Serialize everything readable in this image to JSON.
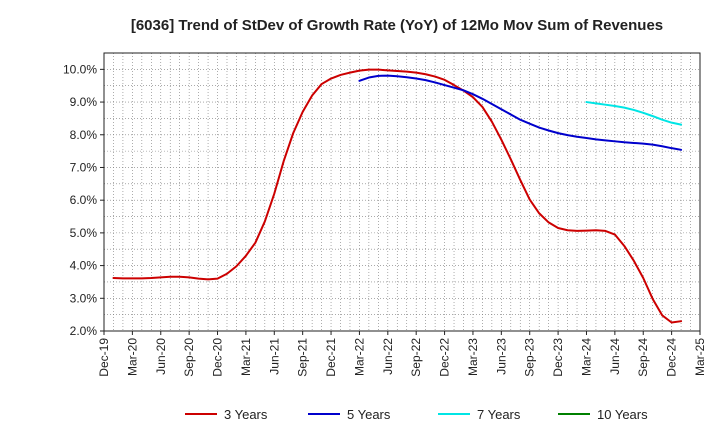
{
  "chart_data": {
    "type": "line",
    "title": "[6036]  Trend of StDev of Growth Rate (YoY) of 12Mo Mov Sum of Revenues",
    "xlabel": "",
    "ylabel": "",
    "ylim": [
      2.0,
      10.5
    ],
    "grid": true,
    "legend_position": "bottom",
    "x_ticks": [
      "Dec-19",
      "Mar-20",
      "Jun-20",
      "Sep-20",
      "Dec-20",
      "Mar-21",
      "Jun-21",
      "Sep-21",
      "Dec-21",
      "Mar-22",
      "Jun-22",
      "Sep-22",
      "Dec-22",
      "Mar-23",
      "Jun-23",
      "Sep-23",
      "Dec-23",
      "Mar-24",
      "Jun-24",
      "Sep-24",
      "Dec-24",
      "Mar-25"
    ],
    "y_ticks": [
      2.0,
      3.0,
      4.0,
      5.0,
      6.0,
      7.0,
      8.0,
      9.0,
      10.0
    ],
    "y_tick_labels": [
      "2.0%",
      "3.0%",
      "4.0%",
      "5.0%",
      "6.0%",
      "7.0%",
      "8.0%",
      "9.0%",
      "10.0%"
    ],
    "series": [
      {
        "name": "3 Years",
        "color": "#cc0000",
        "points": [
          [
            "Jan-20",
            3.62
          ],
          [
            "Feb-20",
            3.61
          ],
          [
            "Mar-20",
            3.61
          ],
          [
            "Apr-20",
            3.61
          ],
          [
            "May-20",
            3.62
          ],
          [
            "Jun-20",
            3.64
          ],
          [
            "Jul-20",
            3.66
          ],
          [
            "Aug-20",
            3.66
          ],
          [
            "Sep-20",
            3.64
          ],
          [
            "Oct-20",
            3.6
          ],
          [
            "Nov-20",
            3.58
          ],
          [
            "Dec-20",
            3.6
          ],
          [
            "Jan-21",
            3.75
          ],
          [
            "Feb-21",
            3.98
          ],
          [
            "Mar-21",
            4.3
          ],
          [
            "Apr-21",
            4.7
          ],
          [
            "May-21",
            5.35
          ],
          [
            "Jun-21",
            6.2
          ],
          [
            "Jul-21",
            7.2
          ],
          [
            "Aug-21",
            8.05
          ],
          [
            "Sep-21",
            8.7
          ],
          [
            "Oct-21",
            9.2
          ],
          [
            "Nov-21",
            9.55
          ],
          [
            "Dec-21",
            9.72
          ],
          [
            "Jan-22",
            9.83
          ],
          [
            "Feb-22",
            9.9
          ],
          [
            "Mar-22",
            9.96
          ],
          [
            "Apr-22",
            9.99
          ],
          [
            "May-22",
            9.99
          ],
          [
            "Jun-22",
            9.97
          ],
          [
            "Jul-22",
            9.95
          ],
          [
            "Aug-22",
            9.93
          ],
          [
            "Sep-22",
            9.9
          ],
          [
            "Oct-22",
            9.85
          ],
          [
            "Nov-22",
            9.78
          ],
          [
            "Dec-22",
            9.68
          ],
          [
            "Jan-23",
            9.52
          ],
          [
            "Feb-23",
            9.35
          ],
          [
            "Mar-23",
            9.15
          ],
          [
            "Apr-23",
            8.85
          ],
          [
            "May-23",
            8.4
          ],
          [
            "Jun-23",
            7.85
          ],
          [
            "Jul-23",
            7.25
          ],
          [
            "Aug-23",
            6.62
          ],
          [
            "Sep-23",
            6.02
          ],
          [
            "Oct-23",
            5.6
          ],
          [
            "Nov-23",
            5.32
          ],
          [
            "Dec-23",
            5.15
          ],
          [
            "Jan-24",
            5.08
          ],
          [
            "Feb-24",
            5.06
          ],
          [
            "Mar-24",
            5.07
          ],
          [
            "Apr-24",
            5.08
          ],
          [
            "May-24",
            5.06
          ],
          [
            "Jun-24",
            4.95
          ],
          [
            "Jul-24",
            4.6
          ],
          [
            "Aug-24",
            4.15
          ],
          [
            "Sep-24",
            3.62
          ],
          [
            "Oct-24",
            2.98
          ],
          [
            "Nov-24",
            2.48
          ],
          [
            "Dec-24",
            2.26
          ],
          [
            "Jan-25",
            2.3
          ]
        ]
      },
      {
        "name": "5 Years",
        "color": "#0000cc",
        "points": [
          [
            "Mar-22",
            9.65
          ],
          [
            "Apr-22",
            9.75
          ],
          [
            "May-22",
            9.8
          ],
          [
            "Jun-22",
            9.81
          ],
          [
            "Jul-22",
            9.79
          ],
          [
            "Aug-22",
            9.76
          ],
          [
            "Sep-22",
            9.72
          ],
          [
            "Oct-22",
            9.67
          ],
          [
            "Nov-22",
            9.6
          ],
          [
            "Dec-22",
            9.52
          ],
          [
            "Jan-23",
            9.44
          ],
          [
            "Feb-23",
            9.36
          ],
          [
            "Mar-23",
            9.24
          ],
          [
            "Apr-23",
            9.1
          ],
          [
            "May-23",
            8.94
          ],
          [
            "Jun-23",
            8.78
          ],
          [
            "Jul-23",
            8.62
          ],
          [
            "Aug-23",
            8.46
          ],
          [
            "Sep-23",
            8.34
          ],
          [
            "Oct-23",
            8.22
          ],
          [
            "Nov-23",
            8.13
          ],
          [
            "Dec-23",
            8.05
          ],
          [
            "Jan-24",
            7.99
          ],
          [
            "Feb-24",
            7.94
          ],
          [
            "Mar-24",
            7.9
          ],
          [
            "Apr-24",
            7.86
          ],
          [
            "May-24",
            7.83
          ],
          [
            "Jun-24",
            7.8
          ],
          [
            "Jul-24",
            7.77
          ],
          [
            "Aug-24",
            7.75
          ],
          [
            "Sep-24",
            7.73
          ],
          [
            "Oct-24",
            7.7
          ],
          [
            "Nov-24",
            7.65
          ],
          [
            "Dec-24",
            7.59
          ],
          [
            "Jan-25",
            7.54
          ]
        ]
      },
      {
        "name": "7 Years",
        "color": "#00e5e5",
        "points": [
          [
            "Mar-24",
            9.0
          ],
          [
            "Apr-24",
            8.96
          ],
          [
            "May-24",
            8.92
          ],
          [
            "Jun-24",
            8.88
          ],
          [
            "Jul-24",
            8.83
          ],
          [
            "Aug-24",
            8.76
          ],
          [
            "Sep-24",
            8.67
          ],
          [
            "Oct-24",
            8.57
          ],
          [
            "Nov-24",
            8.46
          ],
          [
            "Dec-24",
            8.37
          ],
          [
            "Jan-25",
            8.31
          ]
        ]
      },
      {
        "name": "10 Years",
        "color": "#008000",
        "points": []
      }
    ]
  }
}
